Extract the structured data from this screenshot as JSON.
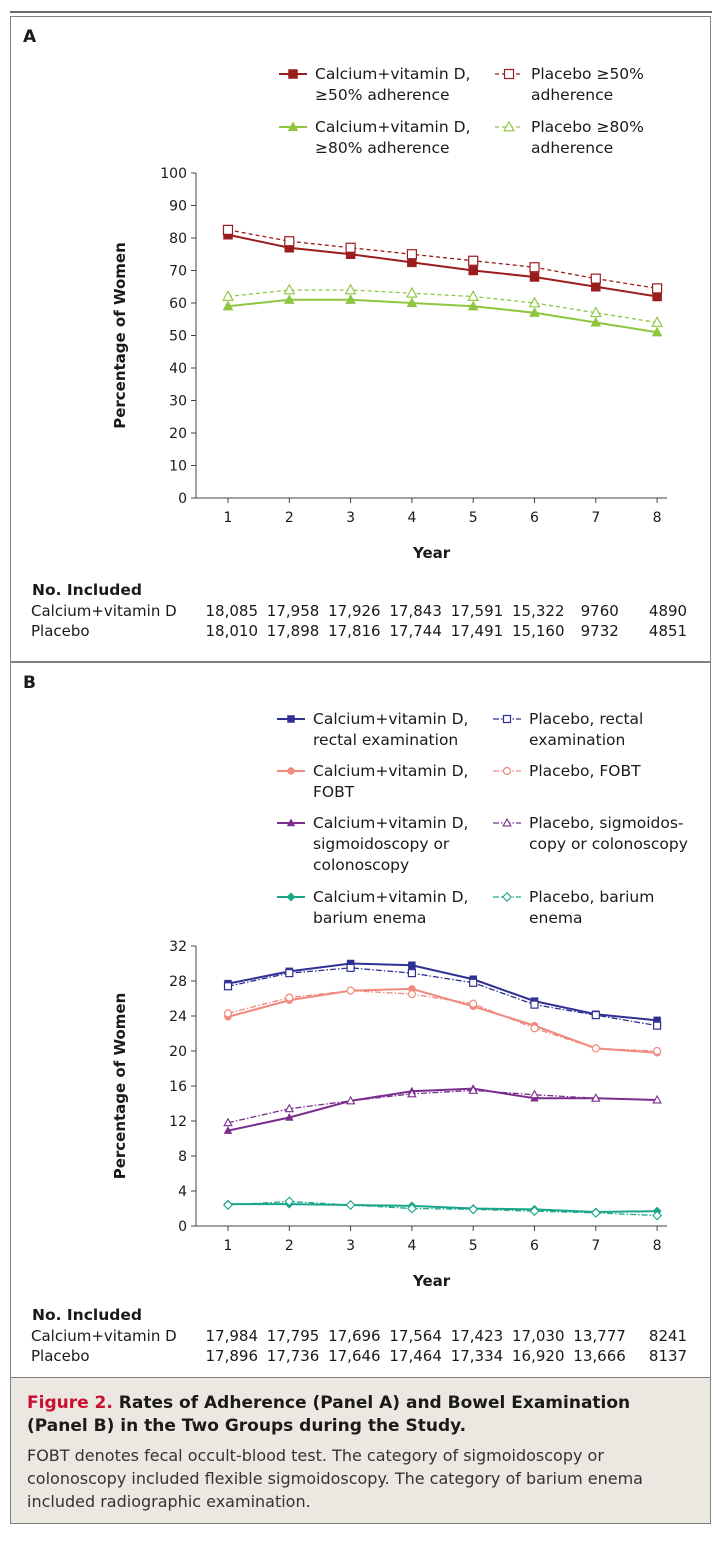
{
  "caption": {
    "figure_number": "Figure 2.",
    "title": "Rates of Adherence (Panel A) and Bowel Examination (Panel B) in the Two Groups during the Study.",
    "text": "FOBT denotes fecal occult-blood test. The category of sigmoidoscopy or colonoscopy included flexible sigmoidoscopy. The category of barium enema included radiographic examination."
  },
  "chart_data": [
    {
      "panel": "A",
      "type": "line",
      "xlabel": "Year",
      "ylabel": "Percentage of Women",
      "x": [
        1,
        2,
        3,
        4,
        5,
        6,
        7,
        8
      ],
      "ylim": [
        0,
        100
      ],
      "yticks": [
        0,
        10,
        20,
        30,
        40,
        50,
        60,
        70,
        80,
        90,
        100
      ],
      "legend_placement": "top",
      "series": [
        {
          "name": [
            "Calcium+vitamin D,",
            "≥50% adherence"
          ],
          "values": [
            81,
            77,
            75,
            72.5,
            70,
            68,
            65,
            62
          ],
          "color": "#9b1c1c",
          "dash": "solid",
          "marker": "square-filled"
        },
        {
          "name": [
            "Placebo ≥50%",
            "adherence"
          ],
          "values": [
            82.5,
            79,
            77,
            75,
            73,
            71,
            67.5,
            64.5
          ],
          "color": "#9b1c1c",
          "dash": "dashed",
          "marker": "square-open"
        },
        {
          "name": [
            "Calcium+vitamin D,",
            "≥80% adherence"
          ],
          "values": [
            59,
            61,
            61,
            60,
            59,
            57,
            54,
            51
          ],
          "color": "#8dc63f",
          "dash": "solid",
          "marker": "triangle-filled"
        },
        {
          "name": [
            "Placebo ≥80%",
            "adherence"
          ],
          "values": [
            62,
            64,
            64,
            63,
            62,
            60,
            57,
            54
          ],
          "color": "#8dc63f",
          "dash": "dashed",
          "marker": "triangle-open"
        }
      ],
      "included": {
        "heading": "No. Included",
        "rows": [
          {
            "label": "Calcium+vitamin D",
            "values": [
              "18,085",
              "17,958",
              "17,926",
              "17,843",
              "17,591",
              "15,322",
              "9760",
              "4890"
            ]
          },
          {
            "label": "Placebo",
            "values": [
              "18,010",
              "17,898",
              "17,816",
              "17,744",
              "17,491",
              "15,160",
              "9732",
              "4851"
            ]
          }
        ]
      }
    },
    {
      "panel": "B",
      "type": "line",
      "xlabel": "Year",
      "ylabel": "Percentage of Women",
      "x": [
        1,
        2,
        3,
        4,
        5,
        6,
        7,
        8
      ],
      "ylim": [
        0,
        32
      ],
      "yticks": [
        0,
        4,
        8,
        12,
        16,
        20,
        24,
        28,
        32
      ],
      "legend_placement": "top",
      "series": [
        {
          "name": [
            "Calcium+vitamin D,",
            "rectal examination"
          ],
          "values": [
            27.7,
            29.1,
            30.0,
            29.8,
            28.2,
            25.7,
            24.2,
            23.5
          ],
          "color": "#2e3192",
          "dash": "solid",
          "marker": "square-filled"
        },
        {
          "name": [
            "Placebo, rectal",
            "examination"
          ],
          "values": [
            27.4,
            28.9,
            29.5,
            28.9,
            27.8,
            25.3,
            24.1,
            22.9
          ],
          "color": "#2e3192",
          "dash": "dashdot",
          "marker": "square-open"
        },
        {
          "name": [
            "Calcium+vitamin D,",
            "FOBT"
          ],
          "values": [
            23.9,
            25.8,
            26.9,
            27.1,
            25.1,
            22.9,
            20.3,
            19.8
          ],
          "color": "#f08a7e",
          "dash": "solid",
          "marker": "circle-filled"
        },
        {
          "name": [
            "Placebo, FOBT"
          ],
          "values": [
            24.3,
            26.1,
            26.9,
            26.5,
            25.4,
            22.6,
            20.3,
            20.0
          ],
          "color": "#f08a7e",
          "dash": "dashdot",
          "marker": "circle-open"
        },
        {
          "name": [
            "Calcium+vitamin D,",
            "sigmoidoscopy or",
            "colonoscopy"
          ],
          "values": [
            10.9,
            12.4,
            14.3,
            15.4,
            15.7,
            14.6,
            14.6,
            14.4
          ],
          "color": "#7b2d8e",
          "dash": "solid",
          "marker": "triangle-filled"
        },
        {
          "name": [
            "Placebo, sigmoidos-",
            "copy or colonoscopy"
          ],
          "values": [
            11.8,
            13.4,
            14.3,
            15.1,
            15.5,
            15.0,
            14.6,
            14.4
          ],
          "color": "#7b2d8e",
          "dash": "dashdot",
          "marker": "triangle-open"
        },
        {
          "name": [
            "Calcium+vitamin D,",
            "barium enema"
          ],
          "values": [
            2.5,
            2.5,
            2.4,
            2.3,
            2.0,
            1.9,
            1.6,
            1.7
          ],
          "color": "#1aa68a",
          "dash": "solid",
          "marker": "diamond-filled"
        },
        {
          "name": [
            "Placebo, barium",
            "enema"
          ],
          "values": [
            2.4,
            2.8,
            2.4,
            2.0,
            1.9,
            1.7,
            1.5,
            1.2
          ],
          "color": "#1aa68a",
          "dash": "dashdot",
          "marker": "diamond-open"
        }
      ],
      "included": {
        "heading": "No. Included",
        "rows": [
          {
            "label": "Calcium+vitamin D",
            "values": [
              "17,984",
              "17,795",
              "17,696",
              "17,564",
              "17,423",
              "17,030",
              "13,777",
              "8241"
            ]
          },
          {
            "label": "Placebo",
            "values": [
              "17,896",
              "17,736",
              "17,646",
              "17,464",
              "17,334",
              "16,920",
              "13,666",
              "8137"
            ]
          }
        ]
      }
    }
  ]
}
